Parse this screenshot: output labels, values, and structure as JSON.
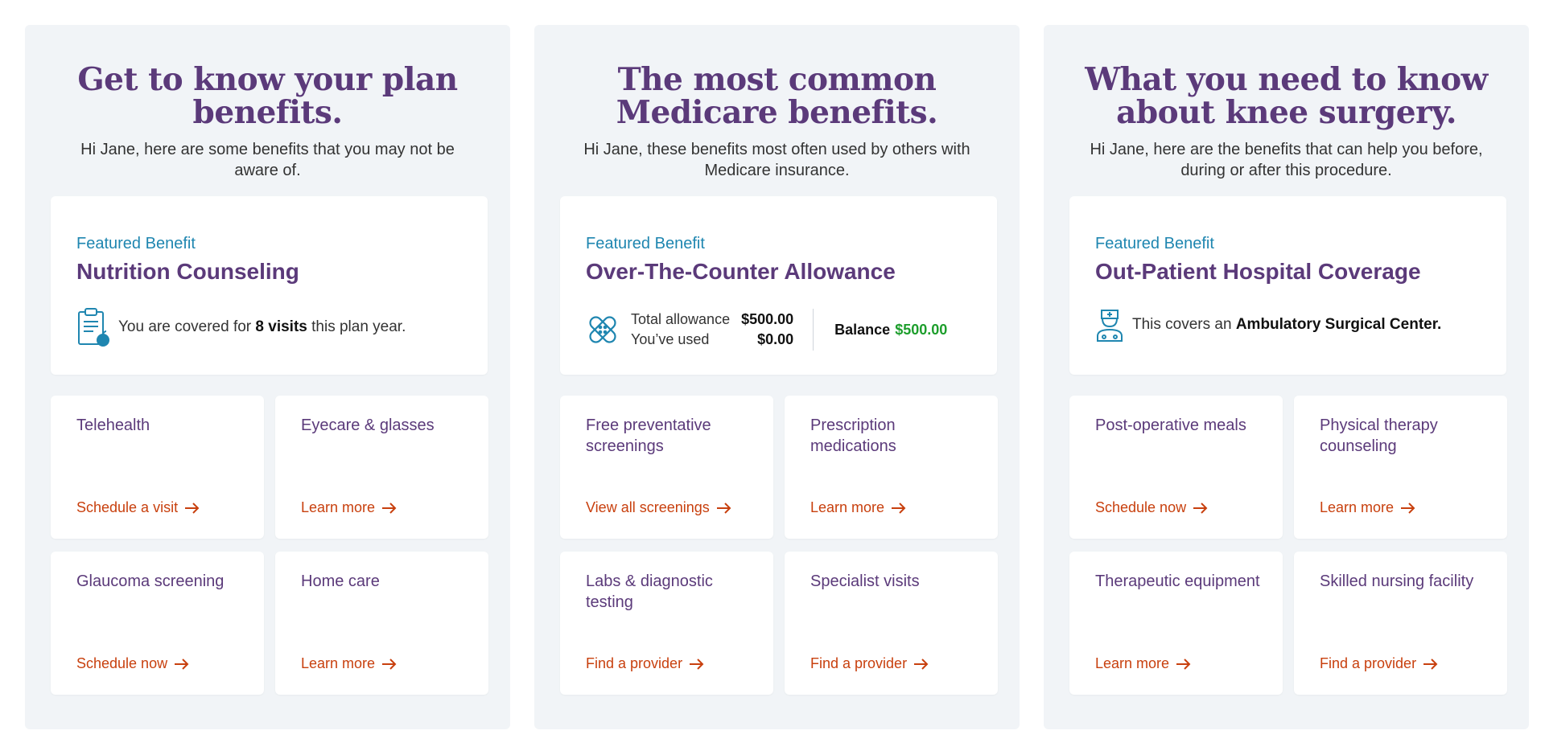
{
  "panels": [
    {
      "title": "Get to know your plan benefits.",
      "subtitle": "Hi Jane, here are some benefits that you may not be aware of.",
      "featured": {
        "eyebrow": "Featured Benefit",
        "name": "Nutrition Counseling",
        "text_pre": "You are covered for ",
        "text_bold": "8 visits",
        "text_post": " this plan year.",
        "icon": "clipboard-apple-icon"
      },
      "tiles": [
        {
          "title": "Telehealth",
          "link": "Schedule a visit"
        },
        {
          "title": "Eyecare & glasses",
          "link": "Learn more"
        },
        {
          "title": "Glaucoma screening",
          "link": "Schedule now"
        },
        {
          "title": "Home care",
          "link": "Learn more"
        }
      ]
    },
    {
      "title": "The most common Medicare benefits.",
      "subtitle": "Hi Jane, these benefits most often used by others with Medicare insurance.",
      "featured": {
        "eyebrow": "Featured Benefit",
        "name": "Over-The-Counter Allowance",
        "icon": "bandage-icon",
        "total_label": "Total allowance",
        "total_value": "$500.00",
        "used_label": "You’ve used",
        "used_value": "$0.00",
        "balance_label": "Balance",
        "balance_value": "$500.00"
      },
      "tiles": [
        {
          "title": "Free preventative screenings",
          "link": "View all screenings"
        },
        {
          "title": "Prescription medications",
          "link": "Learn more"
        },
        {
          "title": "Labs & diagnostic testing",
          "link": "Find a provider"
        },
        {
          "title": "Specialist visits",
          "link": "Find a provider"
        }
      ]
    },
    {
      "title": "What you need to know about knee surgery.",
      "subtitle": "Hi Jane, here are the benefits that can help you before, during or after this procedure.",
      "featured": {
        "eyebrow": "Featured Benefit",
        "name": "Out-Patient Hospital Coverage",
        "text_pre": "This covers an ",
        "text_bold": "Ambulatory Surgical Center.",
        "text_post": "",
        "icon": "nurse-icon"
      },
      "tiles": [
        {
          "title": "Post-operative meals",
          "link": "Schedule now"
        },
        {
          "title": "Physical therapy counseling",
          "link": "Learn more"
        },
        {
          "title": "Therapeutic equipment",
          "link": "Learn more"
        },
        {
          "title": "Skilled nursing facility",
          "link": "Find a provider"
        }
      ]
    }
  ],
  "colors": {
    "title": "#5b3a7a",
    "eyebrow": "#1f86b0",
    "link": "#c8400e",
    "balance": "#1d9e2c",
    "panel_bg": "#f1f4f7"
  }
}
